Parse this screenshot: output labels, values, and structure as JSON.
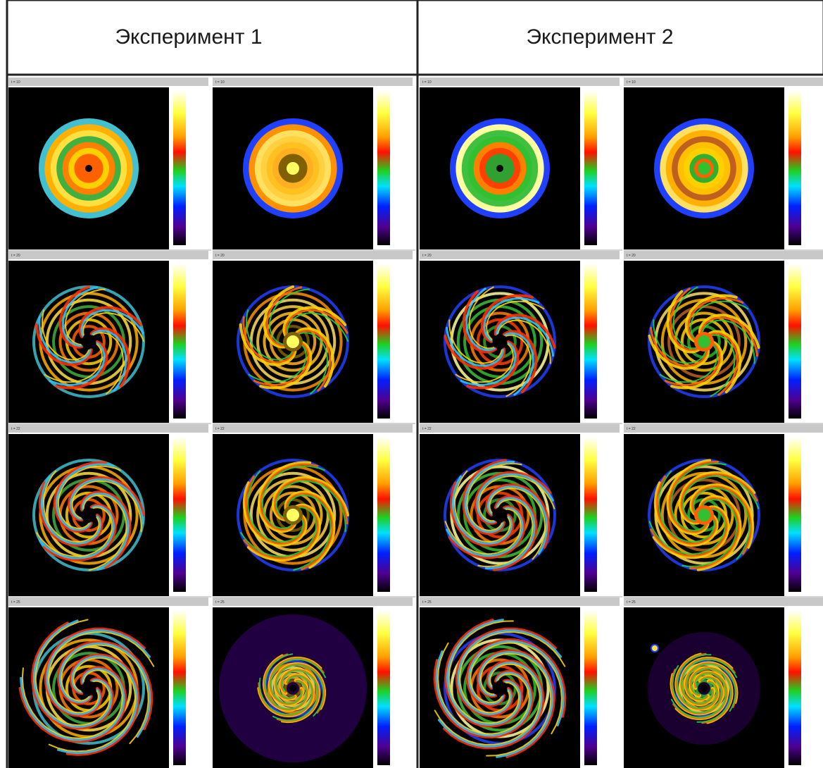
{
  "header": {
    "columns": [
      "Эксперимент 1",
      "Эксперимент 2"
    ]
  },
  "panels": {
    "time_labels": [
      "t = 10",
      "t = 20",
      "t = 22",
      "t = 25"
    ]
  }
}
